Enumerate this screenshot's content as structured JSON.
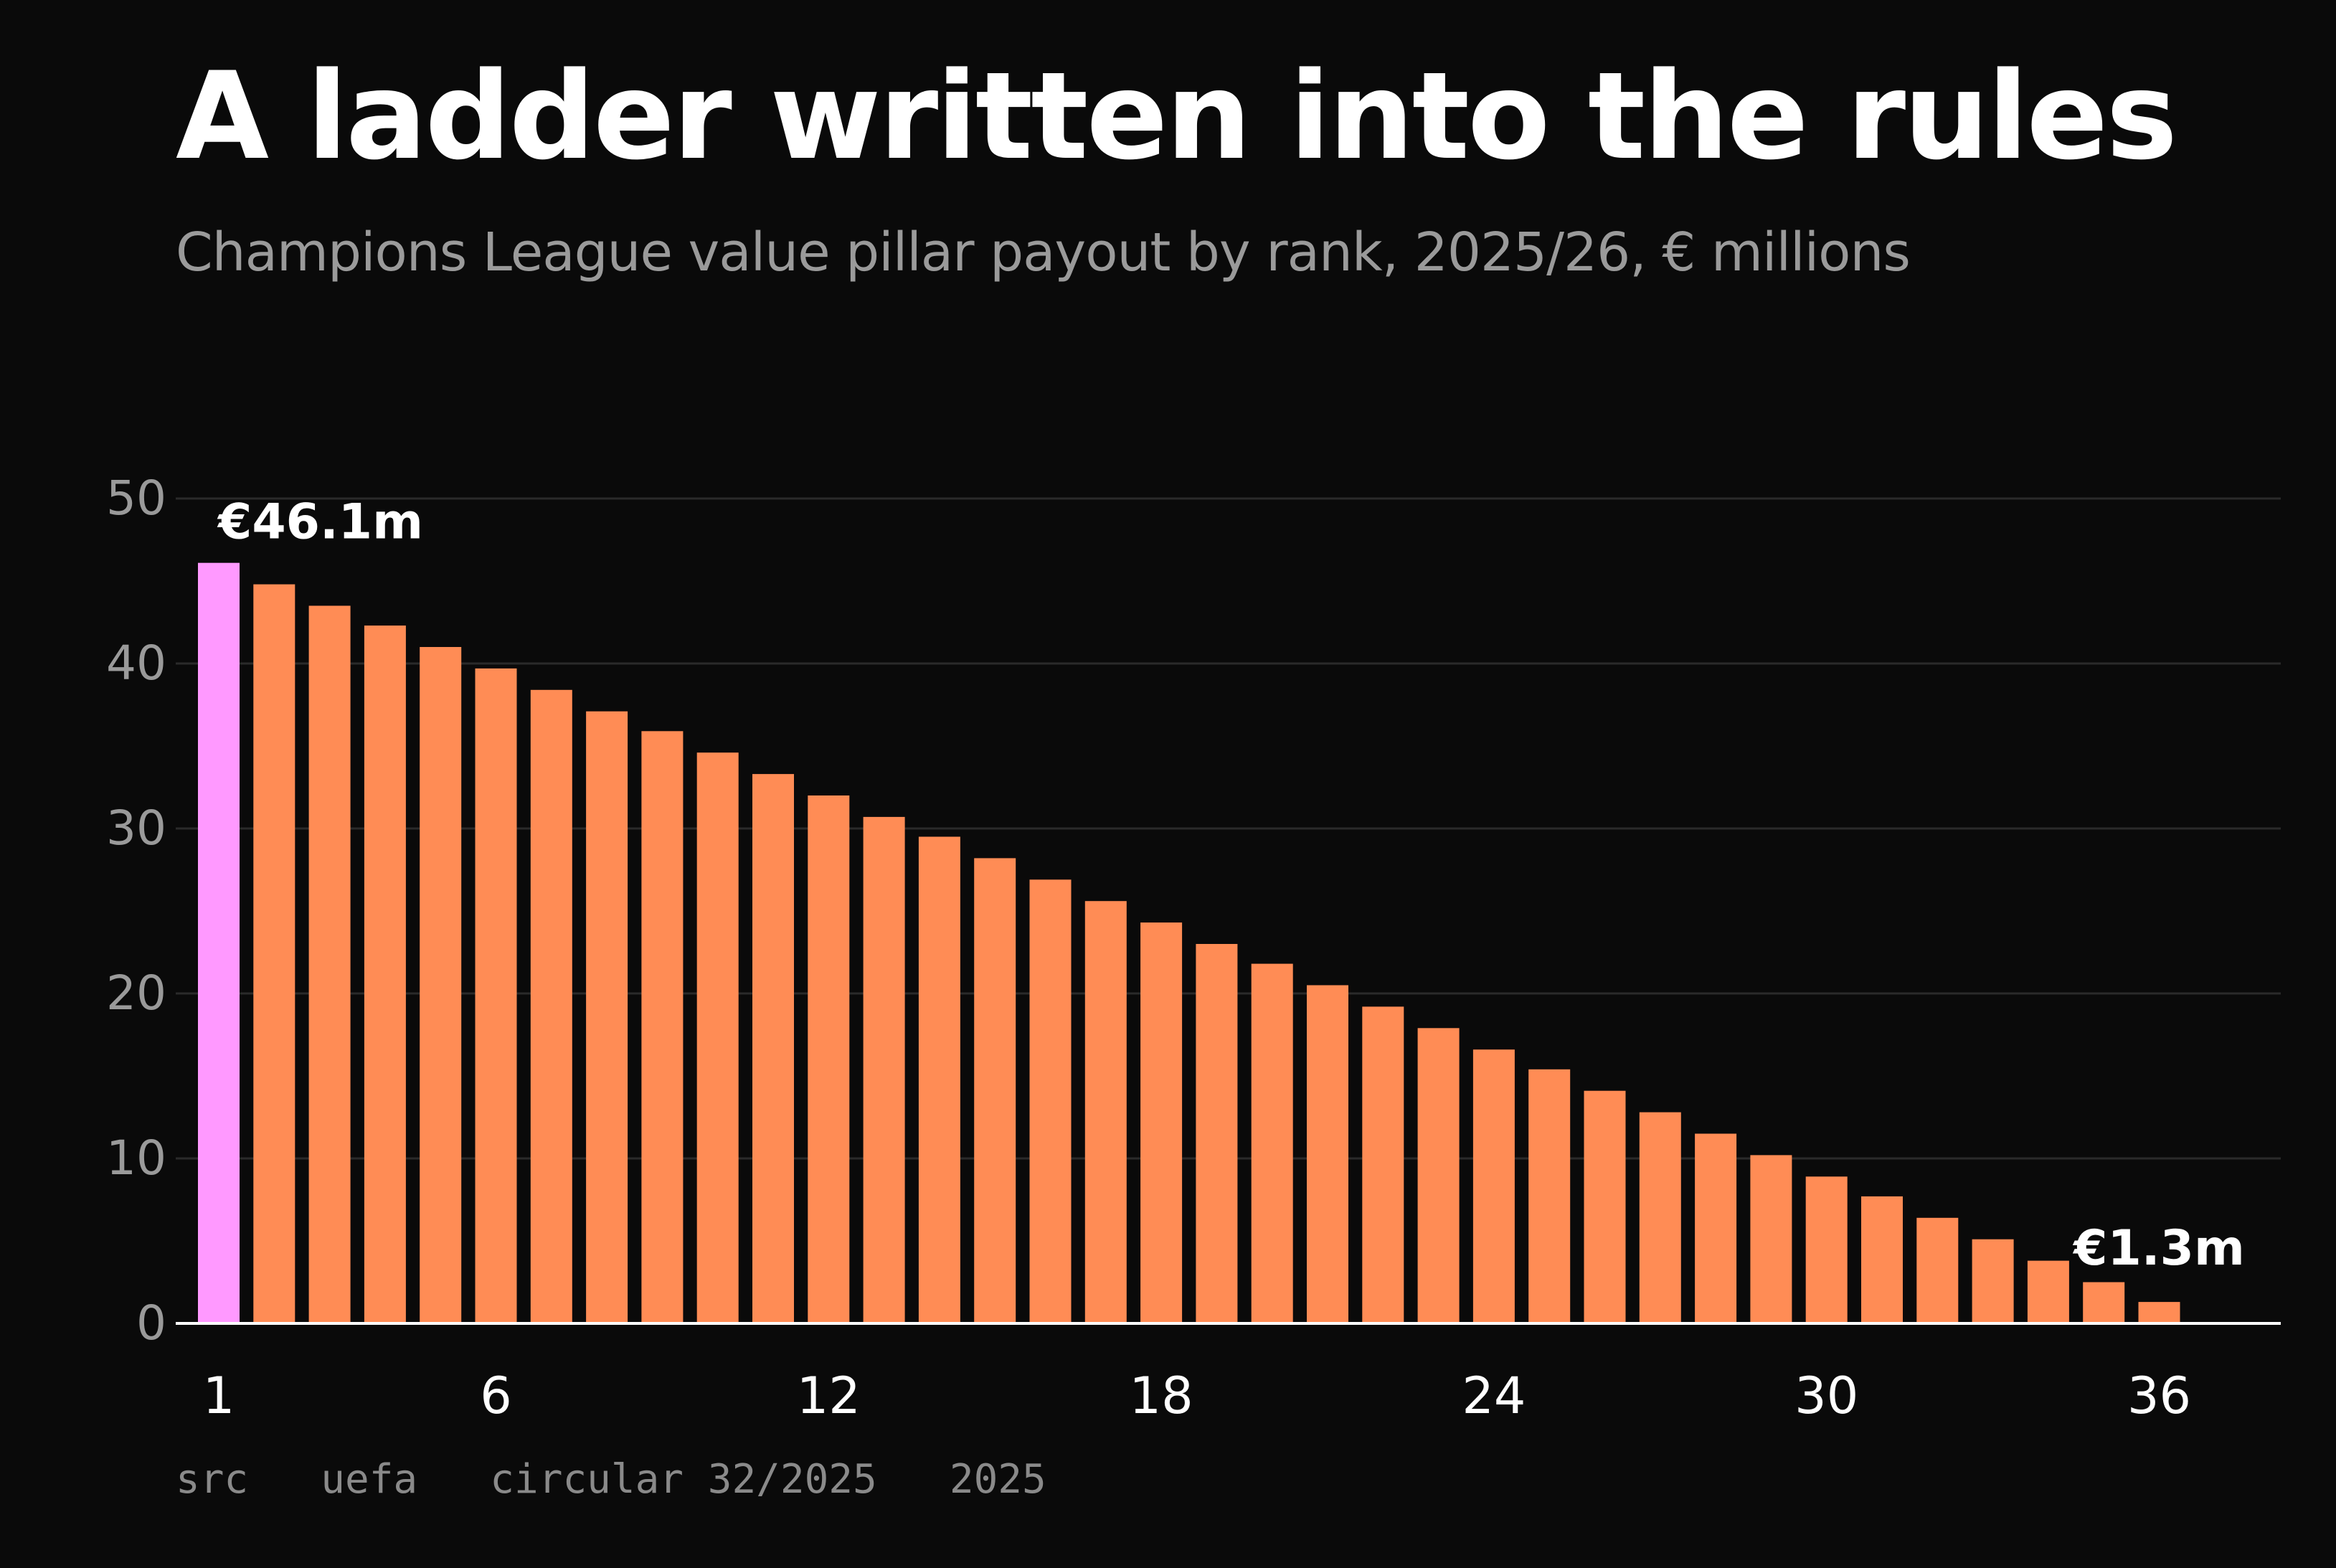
{
  "colors": {
    "background": "#0a0a0a",
    "bar": "#ff8c55",
    "highlight_bar": "#ff99ff",
    "grid": "#2a2a2a",
    "axis": "#ffffff",
    "tick_label_y": "#9a9a9a",
    "tick_label_x": "#ffffff",
    "annotation": "#ffffff"
  },
  "source": {
    "text": "src   uefa   circular 32/2025   2025"
  },
  "chart_data": {
    "type": "bar",
    "title": "A ladder written into the rules",
    "subtitle": "Champions League value pillar payout by rank, 2025/26, € millions",
    "xlabel": "",
    "ylabel": "",
    "x": [
      1,
      2,
      3,
      4,
      5,
      6,
      7,
      8,
      9,
      10,
      11,
      12,
      13,
      14,
      15,
      16,
      17,
      18,
      19,
      20,
      21,
      22,
      23,
      24,
      25,
      26,
      27,
      28,
      29,
      30,
      31,
      32,
      33,
      34,
      35,
      36
    ],
    "values": [
      46.1,
      44.8,
      43.5,
      42.3,
      41.0,
      39.7,
      38.4,
      37.1,
      35.9,
      34.6,
      33.3,
      32.0,
      30.7,
      29.5,
      28.2,
      26.9,
      25.6,
      24.3,
      23.0,
      21.8,
      20.5,
      19.2,
      17.9,
      16.6,
      15.4,
      14.1,
      12.8,
      11.5,
      10.2,
      8.9,
      7.7,
      6.4,
      5.1,
      3.8,
      2.5,
      1.3
    ],
    "highlight_index": 0,
    "ylim": [
      0,
      50
    ],
    "y_ticks": [
      0,
      10,
      20,
      30,
      40,
      50
    ],
    "x_ticks": [
      1,
      6,
      12,
      18,
      24,
      30,
      36
    ],
    "grid": true,
    "legend": "none",
    "annotations": [
      {
        "rank": 1,
        "text": "€46.1m"
      },
      {
        "rank": 36,
        "text": "€1.3m"
      }
    ]
  }
}
